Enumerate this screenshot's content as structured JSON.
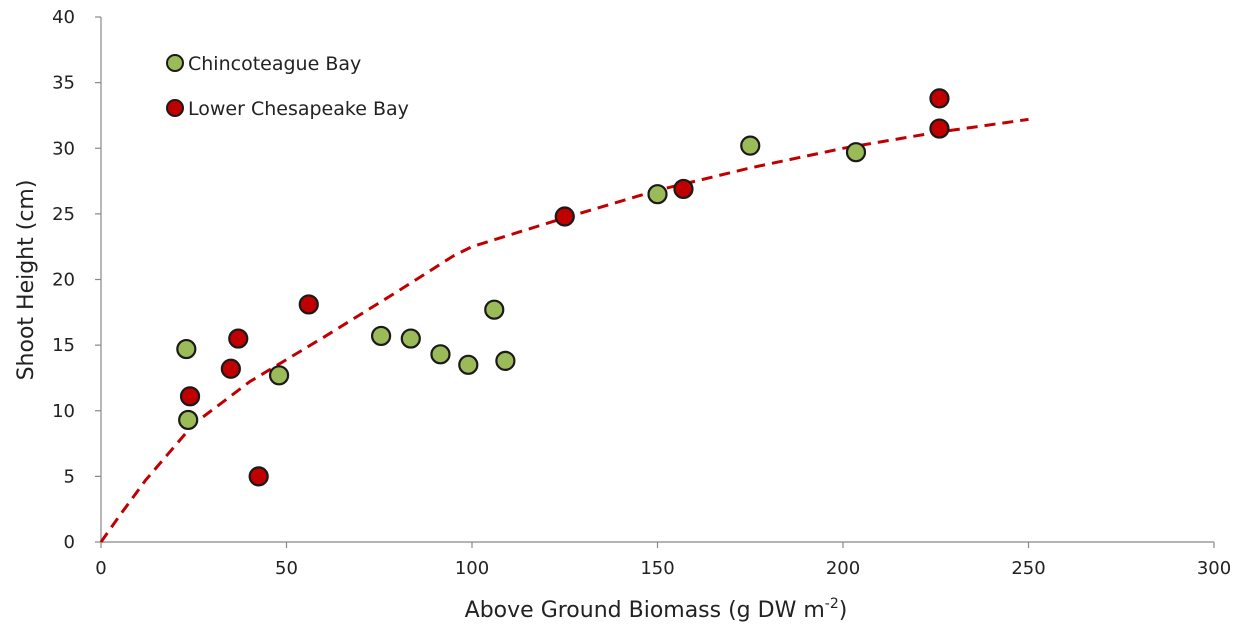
{
  "chart_data": {
    "type": "scatter",
    "xlabel": "Above Ground Biomass (g DW m",
    "xlabel_sup": "-2",
    "xlabel_suffix": ")",
    "ylabel": "Shoot Height (cm)",
    "xlim": [
      0,
      300
    ],
    "ylim": [
      0,
      40
    ],
    "xticks": [
      0,
      50,
      100,
      150,
      200,
      250,
      300
    ],
    "yticks": [
      0,
      5,
      10,
      15,
      20,
      25,
      30,
      35,
      40
    ],
    "grid": false,
    "legend_position": "top-left",
    "series": [
      {
        "name": "Chincoteague Bay",
        "color": "#9bbb59",
        "points": [
          {
            "x": 23,
            "y": 14.7
          },
          {
            "x": 23.5,
            "y": 9.3
          },
          {
            "x": 48,
            "y": 12.7
          },
          {
            "x": 75.5,
            "y": 15.7
          },
          {
            "x": 83.5,
            "y": 15.5
          },
          {
            "x": 91.5,
            "y": 14.3
          },
          {
            "x": 99,
            "y": 13.5
          },
          {
            "x": 106,
            "y": 17.7
          },
          {
            "x": 109,
            "y": 13.8
          },
          {
            "x": 150,
            "y": 26.5
          },
          {
            "x": 175,
            "y": 30.2
          },
          {
            "x": 203.5,
            "y": 29.7
          }
        ]
      },
      {
        "name": "Lower Chesapeake Bay",
        "color": "#c00000",
        "points": [
          {
            "x": 24,
            "y": 11.1
          },
          {
            "x": 35,
            "y": 13.2
          },
          {
            "x": 37,
            "y": 15.5
          },
          {
            "x": 42.5,
            "y": 5.0
          },
          {
            "x": 56,
            "y": 18.1
          },
          {
            "x": 125,
            "y": 24.8
          },
          {
            "x": 157,
            "y": 26.9
          },
          {
            "x": 226,
            "y": 31.5
          },
          {
            "x": 226,
            "y": 33.8
          }
        ]
      }
    ],
    "trendline": {
      "style": "dashed",
      "color": "#c00000",
      "points": [
        {
          "x": 0,
          "y": 0
        },
        {
          "x": 5,
          "y": 2
        },
        {
          "x": 12,
          "y": 4.7
        },
        {
          "x": 25,
          "y": 9
        },
        {
          "x": 40,
          "y": 12.2
        },
        {
          "x": 60,
          "y": 15.6
        },
        {
          "x": 80,
          "y": 19.1
        },
        {
          "x": 95,
          "y": 21.8
        },
        {
          "x": 100,
          "y": 22.5
        },
        {
          "x": 125,
          "y": 24.7
        },
        {
          "x": 150,
          "y": 26.8
        },
        {
          "x": 175,
          "y": 28.5
        },
        {
          "x": 200,
          "y": 30
        },
        {
          "x": 225,
          "y": 31.2
        },
        {
          "x": 250,
          "y": 32.2
        }
      ]
    }
  }
}
